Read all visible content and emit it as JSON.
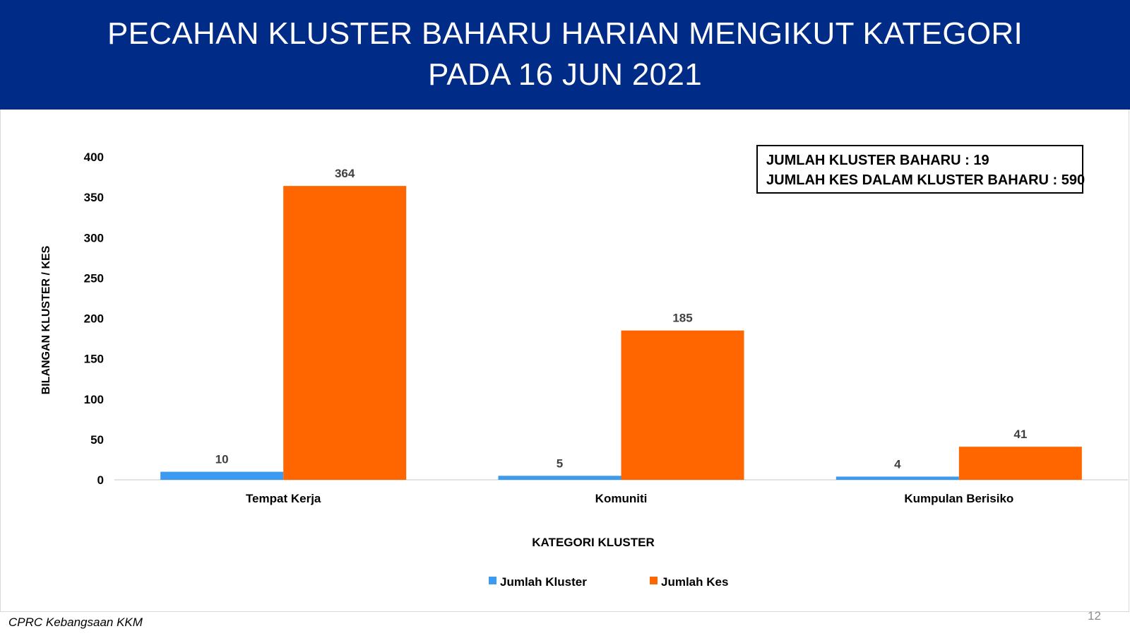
{
  "header": {
    "title_line1": "PECAHAN KLUSTER BAHARU HARIAN MENGIKUT KATEGORI",
    "title_line2": "PADA 16 JUN 2021",
    "background_color": "#002b87"
  },
  "summary": {
    "line1": "JUMLAH KLUSTER BAHARU : 19",
    "line2": "JUMLAH KES DALAM KLUSTER BAHARU : 590"
  },
  "chart_data": {
    "type": "bar",
    "categories": [
      "Tempat Kerja",
      "Komuniti",
      "Kumpulan Berisiko"
    ],
    "series": [
      {
        "name": "Jumlah Kluster",
        "values": [
          10,
          5,
          4
        ],
        "color": "#3c9bf0"
      },
      {
        "name": "Jumlah Kes",
        "values": [
          364,
          185,
          41
        ],
        "color": "#ff6600"
      }
    ],
    "title": "",
    "xlabel": "KATEGORI KLUSTER",
    "ylabel": "BILANGAN KLUSTER / KES",
    "ylim": [
      0,
      400
    ],
    "yticks": [
      0,
      50,
      100,
      150,
      200,
      250,
      300,
      350,
      400
    ],
    "grid": false,
    "legend_position": "bottom",
    "data_labels": true
  },
  "footer": {
    "source": "CPRC Kebangsaan KKM",
    "page_number": "12"
  }
}
